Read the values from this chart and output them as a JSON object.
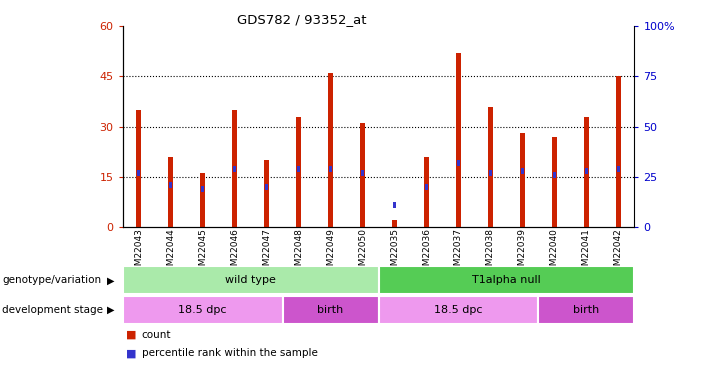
{
  "title": "GDS782 / 93352_at",
  "samples": [
    "GSM22043",
    "GSM22044",
    "GSM22045",
    "GSM22046",
    "GSM22047",
    "GSM22048",
    "GSM22049",
    "GSM22050",
    "GSM22035",
    "GSM22036",
    "GSM22037",
    "GSM22038",
    "GSM22039",
    "GSM22040",
    "GSM22041",
    "GSM22042"
  ],
  "counts": [
    35,
    21,
    16,
    35,
    20,
    33,
    46,
    31,
    2,
    21,
    52,
    36,
    28,
    27,
    33,
    45
  ],
  "percentiles": [
    27,
    21,
    19,
    29,
    20,
    29,
    29,
    27,
    11,
    20,
    32,
    27,
    28,
    26,
    28,
    29
  ],
  "count_color": "#cc2200",
  "percentile_color": "#3333cc",
  "ylim_left": [
    0,
    60
  ],
  "ylim_right": [
    0,
    100
  ],
  "yticks_left": [
    0,
    15,
    30,
    45,
    60
  ],
  "yticks_right": [
    0,
    25,
    50,
    75,
    100
  ],
  "ytick_labels_left": [
    "0",
    "15",
    "30",
    "45",
    "60"
  ],
  "ytick_labels_right": [
    "0",
    "25",
    "50",
    "75",
    "100%"
  ],
  "genotype_groups": [
    {
      "label": "wild type",
      "start": 0,
      "end": 8,
      "color": "#aaeaaa"
    },
    {
      "label": "T1alpha null",
      "start": 8,
      "end": 16,
      "color": "#55cc55"
    }
  ],
  "development_groups": [
    {
      "label": "18.5 dpc",
      "start": 0,
      "end": 5,
      "color": "#ee99ee"
    },
    {
      "label": "birth",
      "start": 5,
      "end": 8,
      "color": "#cc55cc"
    },
    {
      "label": "18.5 dpc",
      "start": 8,
      "end": 13,
      "color": "#ee99ee"
    },
    {
      "label": "birth",
      "start": 13,
      "end": 16,
      "color": "#cc55cc"
    }
  ],
  "legend_count_label": "count",
  "legend_percentile_label": "percentile rank within the sample",
  "row1_label": "genotype/variation",
  "row2_label": "development stage",
  "bar_width": 0.15,
  "pct_bar_width": 0.08,
  "grid_color": "#000000",
  "background_color": "#ffffff",
  "plot_bg": "#ffffff",
  "axis_label_color_left": "#cc2200",
  "axis_label_color_right": "#0000cc"
}
